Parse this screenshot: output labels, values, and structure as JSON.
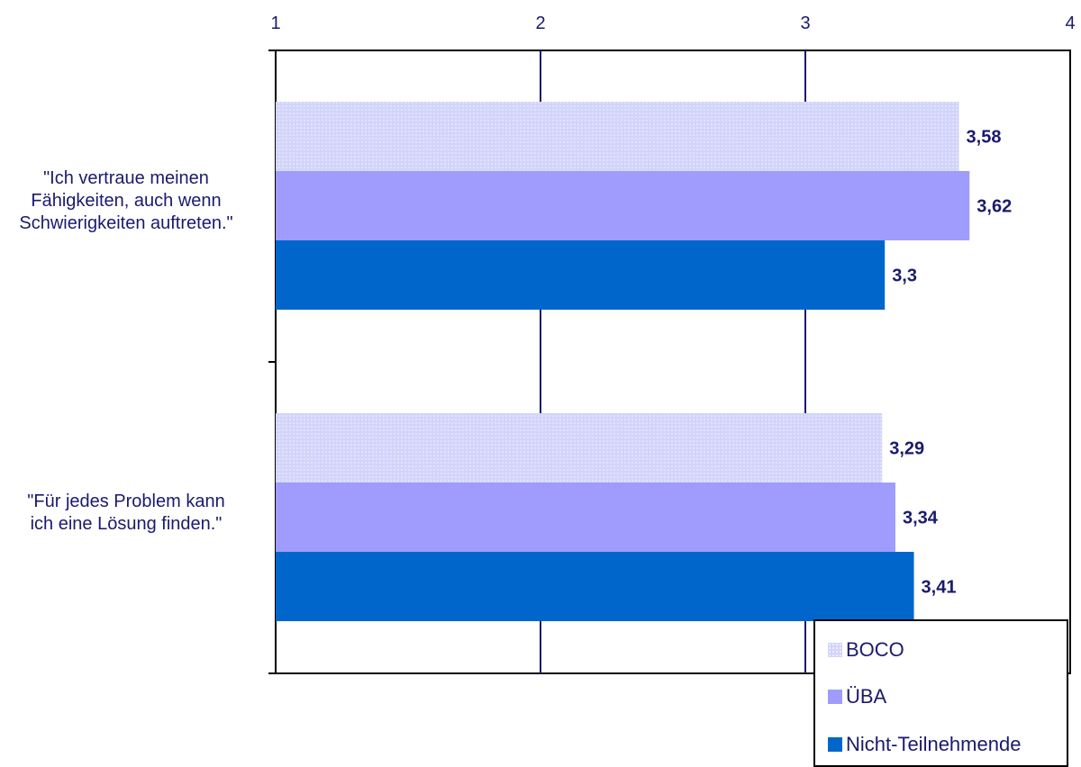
{
  "chart_data": {
    "type": "bar",
    "orientation": "horizontal",
    "categories": [
      "\"Ich vertraue meinen Fähigkeiten, auch wenn Schwierigkeiten auftreten.\"",
      "\"Für jedes Problem kann ich eine Lösung finden.\""
    ],
    "category_lines": [
      [
        "\"Ich vertraue meinen",
        "Fähigkeiten, auch wenn",
        "Schwierigkeiten auftreten.\""
      ],
      [
        "\"Für jedes Problem kann",
        "ich eine Lösung finden.\""
      ]
    ],
    "series": [
      {
        "name": "BOCO",
        "values": [
          3.58,
          3.29
        ],
        "labels": [
          "3,58",
          "3,29"
        ],
        "color": "#d2d4fa",
        "pattern": "dotted"
      },
      {
        "name": "ÜBA",
        "values": [
          3.62,
          3.34
        ],
        "labels": [
          "3,62",
          "3,34"
        ],
        "color": "#9f9cfd"
      },
      {
        "name": "Nicht-Teilnehmende",
        "values": [
          3.3,
          3.41
        ],
        "labels": [
          "3,3",
          "3,41"
        ],
        "color": "#0066cc"
      }
    ],
    "xlim": [
      1,
      4
    ],
    "xticks": [
      "1",
      "2",
      "3",
      "4"
    ],
    "x_axis_position": "top",
    "grid": true,
    "legend_position": "bottom-right",
    "title": "",
    "xlabel": "",
    "ylabel": ""
  }
}
